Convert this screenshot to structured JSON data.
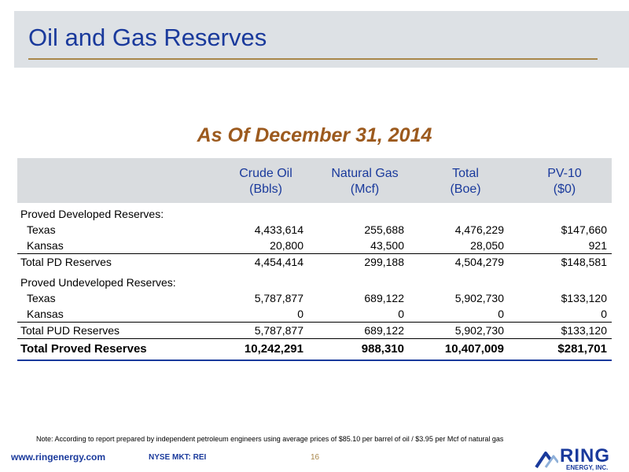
{
  "slide": {
    "title": "Oil and Gas Reserves",
    "subtitle": "As Of December 31, 2014"
  },
  "table": {
    "columns": [
      {
        "line1": "Crude Oil",
        "line2": "(Bbls)"
      },
      {
        "line1": "Natural Gas",
        "line2": "(Mcf)"
      },
      {
        "line1": "Total",
        "line2": "(Boe)"
      },
      {
        "line1": "PV-10",
        "line2": "($0)"
      }
    ],
    "pd_header": "Proved Developed Reserves:",
    "pd_rows": [
      {
        "label": "Texas",
        "values": [
          "4,433,614",
          "255,688",
          "4,476,229",
          "$147,660"
        ]
      },
      {
        "label": "Kansas",
        "values": [
          "20,800",
          "43,500",
          "28,050",
          "921"
        ]
      }
    ],
    "pd_total": {
      "label": "Total PD Reserves",
      "values": [
        "4,454,414",
        "299,188",
        "4,504,279",
        "$148,581"
      ]
    },
    "pud_header": "Proved Undeveloped Reserves:",
    "pud_rows": [
      {
        "label": "Texas",
        "values": [
          "5,787,877",
          "689,122",
          "5,902,730",
          "$133,120"
        ]
      },
      {
        "label": "Kansas",
        "values": [
          "0",
          "0",
          "0",
          "0"
        ]
      }
    ],
    "pud_total": {
      "label": "Total PUD Reserves",
      "values": [
        "5,787,877",
        "689,122",
        "5,902,730",
        "$133,120"
      ]
    },
    "grand_total": {
      "label": "Total Proved Reserves",
      "values": [
        "10,242,291",
        "988,310",
        "10,407,009",
        "$281,701"
      ]
    }
  },
  "note": "Note: According to report prepared by independent petroleum engineers using average prices of $85.10 per barrel of oil / $3.95 per Mcf of natural gas",
  "footer": {
    "url": "www.ringenergy.com",
    "ticker": "NYSE MKT: REI",
    "page_number": "16",
    "logo_word": "RING",
    "logo_sub": "ENERGY, INC."
  },
  "colors": {
    "title_blue": "#1a3a9c",
    "subtitle_brown": "#9c5a1e",
    "rule_gold": "#a8864a",
    "header_gray": "#dde1e5"
  }
}
